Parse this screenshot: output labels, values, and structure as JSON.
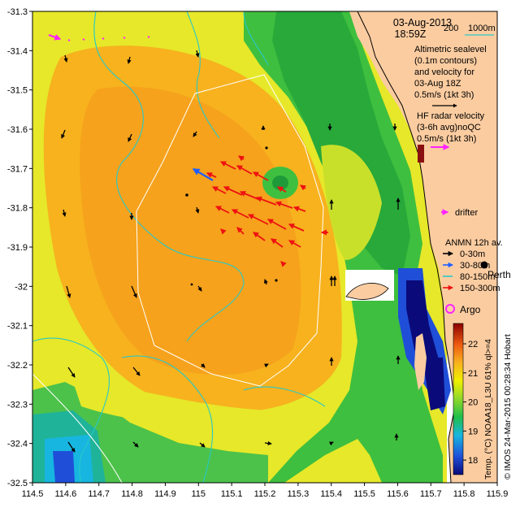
{
  "title": {
    "date": "03-Aug-2013",
    "time": "18:59Z"
  },
  "depth_contours": {
    "labels": [
      "200",
      "1000m"
    ],
    "colors": [
      "#ffffff",
      "#28c8c8"
    ]
  },
  "notes": {
    "altimetric": [
      "Altimetric sealevel",
      "(0.1m contours)",
      "and velocity for",
      "03-Aug 18Z",
      "0.5m/s (1kt 3h)"
    ],
    "hf_radar": [
      "HF radar velocity",
      "(3-6h avg)noQC",
      "0.5m/s (1kt 3h)"
    ],
    "drifter": "drifter",
    "anmn_title": "ANMN 12h av.",
    "anmn_items": [
      {
        "label": "0-30m",
        "color": "#000000"
      },
      {
        "label": "30-80m",
        "color": "#1f5fff"
      },
      {
        "label": "80-150m",
        "color": "#28c8c8"
      },
      {
        "label": "150-300m",
        "color": "#ee1111"
      }
    ],
    "city": "Perth",
    "argo": "Argo"
  },
  "colorbar": {
    "ticks": [
      "18",
      "19",
      "20",
      "21",
      "22"
    ],
    "range": [
      17.5,
      22.7
    ],
    "caption": "Temp. (°C) NOAA18_L3U 61% ql>=4"
  },
  "credit": "© IMOS 24-Mar-2015 00:28:34 Hobart",
  "axes": {
    "x_ticks": [
      "114.5",
      "114.6",
      "114.7",
      "114.8",
      "114.9",
      "115",
      "115.1",
      "115.2",
      "115.3",
      "115.4",
      "115.5",
      "115.6",
      "115.7",
      "115.8",
      "115.9"
    ],
    "y_ticks": [
      "-31.3",
      "-31.4",
      "-31.5",
      "-31.6",
      "-31.7",
      "-31.8",
      "-31.9",
      "-32",
      "-32.1",
      "-32.2",
      "-32.3",
      "-32.4",
      "-32.5"
    ],
    "lon_range": [
      114.5,
      115.9
    ],
    "lat_range": [
      -32.5,
      -31.3
    ]
  },
  "colors": {
    "land": "#fbcca0",
    "hf_radar": "#ee1111",
    "anmn_shallow": "#1f5fff",
    "drifter": "#ff22ff",
    "contour_sealevel": "#28c8c8"
  }
}
